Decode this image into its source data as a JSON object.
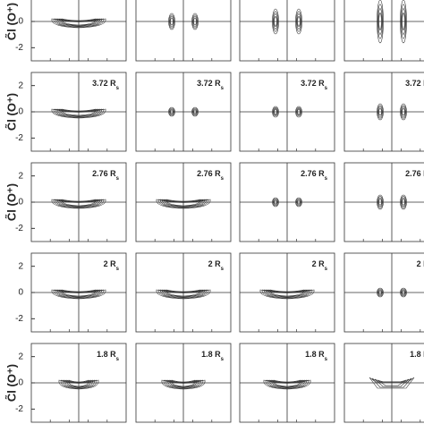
{
  "figure": {
    "ylim": [
      -3,
      3
    ],
    "rows": [
      {
        "y_label": "C̃l (O⁺)",
        "yticks": [
          0,
          -2
        ]
      },
      {
        "y_label": "C̃l (O⁺)",
        "yticks": [
          2,
          0,
          -2
        ],
        "panel_label": "3.72 R",
        "panel_label_sub": "s"
      },
      {
        "y_label": "C̃l (O⁺)",
        "yticks": [
          2,
          0,
          -2
        ],
        "panel_label": "2.76 R",
        "panel_label_sub": "s"
      },
      {
        "yticks": [
          2,
          0,
          -2
        ],
        "panel_label": "2 R",
        "panel_label_sub": "s"
      },
      {
        "y_label": "C̃l (O⁺)",
        "yticks": [
          2,
          0,
          -2
        ],
        "panel_label": "1.8 R",
        "panel_label_sub": "s"
      }
    ]
  }
}
